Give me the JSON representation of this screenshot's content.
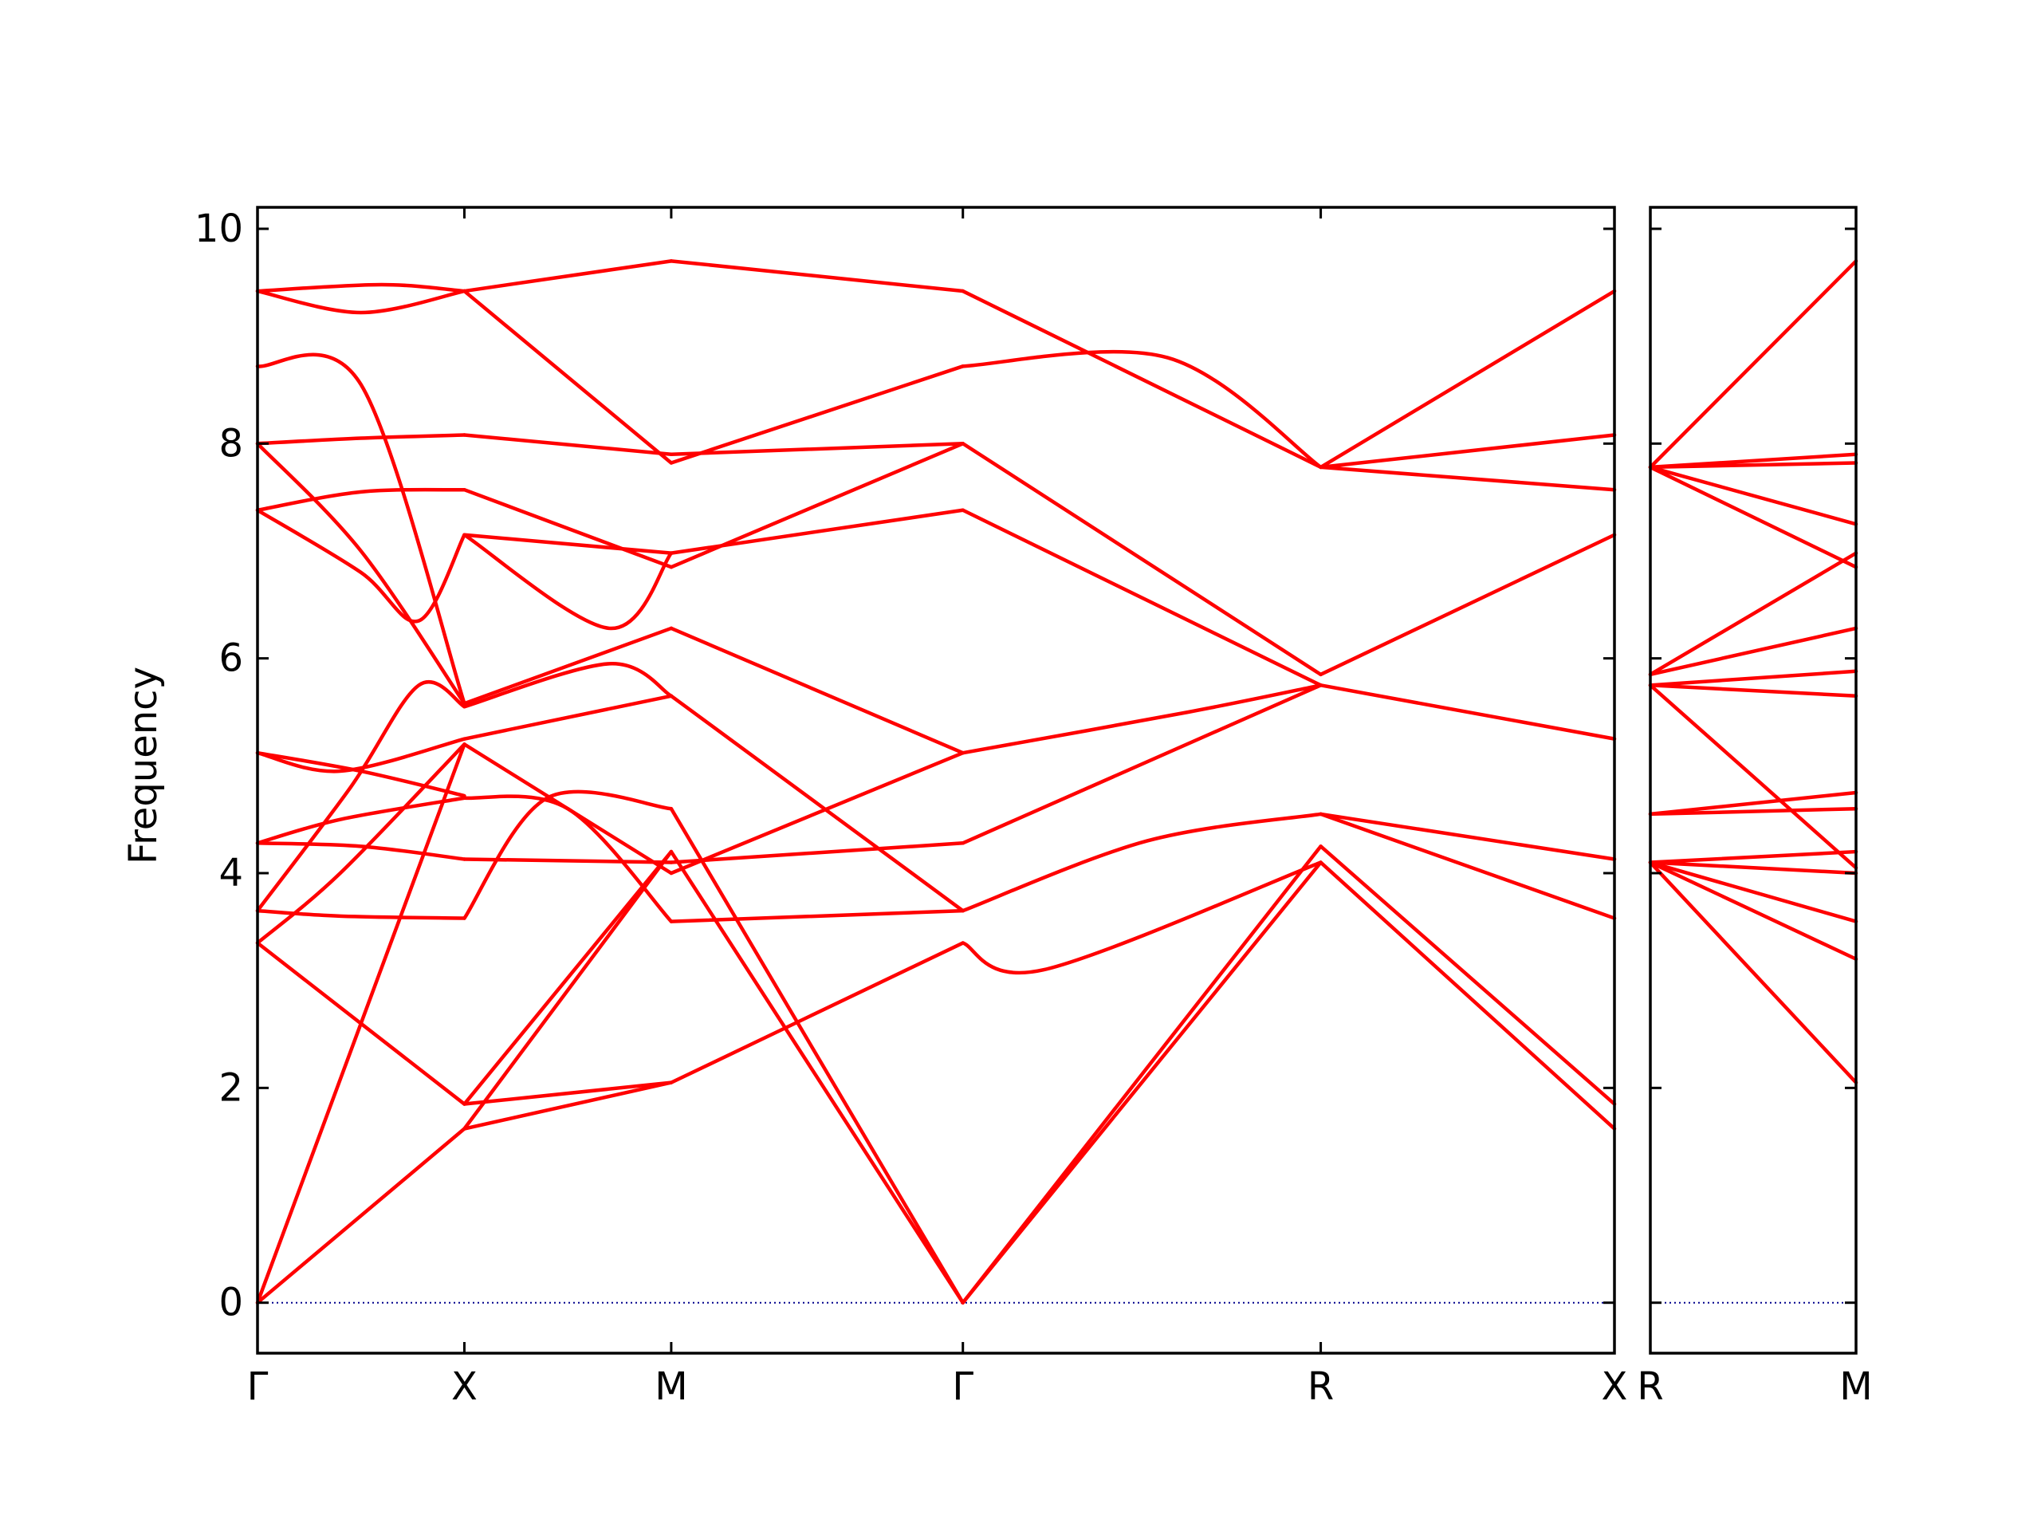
{
  "chart_data": {
    "type": "line",
    "ylabel": "Frequency",
    "ylim": [
      -0.47,
      10.2
    ],
    "yticks": [
      0,
      2,
      4,
      6,
      8,
      10
    ],
    "grid": false,
    "legend": "none",
    "line_color": "#ff0000",
    "zero_line_color": "#00008b",
    "panels": [
      {
        "name": "main",
        "xticks": [
          "Γ",
          "X",
          "M",
          "Γ",
          "R",
          "X"
        ],
        "tick_positions": [
          0,
          1,
          2,
          3.41,
          5.14,
          6.56
        ],
        "bands": [
          {
            "segment": "Γ-X",
            "curves": [
              [
                [
                  0,
                  0
                ],
                [
                  1,
                  1.62
                ]
              ],
              [
                [
                  0,
                  0
                ],
                [
                  1,
                  5.2
                ]
              ],
              [
                [
                  0,
                  3.35
                ],
                [
                  0.5,
                  2.6
                ],
                [
                  1,
                  1.85
                ]
              ],
              [
                [
                  0,
                  3.35
                ],
                [
                  0.4,
                  4.0
                ],
                [
                  1,
                  5.2
                ]
              ],
              [
                [
                  0,
                  3.65
                ],
                [
                  0.4,
                  3.6
                ],
                [
                  1,
                  3.58
                ]
              ],
              [
                [
                  0,
                  3.65
                ],
                [
                  0.45,
                  4.8
                ],
                [
                  0.78,
                  5.75
                ],
                [
                  1,
                  5.55
                ]
              ],
              [
                [
                  0,
                  4.28
                ],
                [
                  0.4,
                  4.5
                ],
                [
                  1,
                  4.7
                ]
              ],
              [
                [
                  0,
                  4.28
                ],
                [
                  0.5,
                  4.25
                ],
                [
                  1,
                  4.13
                ]
              ],
              [
                [
                  0,
                  5.12
                ],
                [
                  0.5,
                  4.95
                ],
                [
                  1,
                  4.72
                ]
              ],
              [
                [
                  0,
                  5.12
                ],
                [
                  0.4,
                  4.95
                ],
                [
                  1,
                  5.25
                ]
              ],
              [
                [
                  0,
                  7.38
                ],
                [
                  0.5,
                  6.8
                ],
                [
                  0.78,
                  6.35
                ],
                [
                  1,
                  7.15
                ]
              ],
              [
                [
                  0,
                  7.38
                ],
                [
                  0.5,
                  7.55
                ],
                [
                  1,
                  7.57
                ]
              ],
              [
                [
                  0,
                  8.0
                ],
                [
                  0.5,
                  7.0
                ],
                [
                  1,
                  5.58
                ]
              ],
              [
                [
                  0,
                  8.0
                ],
                [
                  0.5,
                  8.05
                ],
                [
                  1,
                  8.08
                ]
              ],
              [
                [
                  0,
                  8.72
                ],
                [
                  0.5,
                  8.55
                ],
                [
                  1,
                  5.58
                ]
              ],
              [
                [
                  0,
                  9.42
                ],
                [
                  0.5,
                  9.22
                ],
                [
                  1,
                  9.42
                ]
              ],
              [
                [
                  0,
                  9.42
                ],
                [
                  0.6,
                  9.48
                ],
                [
                  1,
                  9.42
                ]
              ]
            ]
          },
          {
            "segment": "X-M",
            "curves": [
              [
                [
                  1,
                  1.62
                ],
                [
                  2,
                  2.05
                ]
              ],
              [
                [
                  1,
                  1.85
                ],
                [
                  2,
                  2.05
                ]
              ],
              [
                [
                  1,
                  1.62
                ],
                [
                  2,
                  4.2
                ]
              ],
              [
                [
                  1,
                  1.85
                ],
                [
                  2,
                  4.2
                ]
              ],
              [
                [
                  1,
                  3.58
                ],
                [
                  1.4,
                  4.7
                ],
                [
                  2,
                  4.6
                ]
              ],
              [
                [
                  1,
                  4.13
                ],
                [
                  2,
                  4.1
                ]
              ],
              [
                [
                  1,
                  4.7
                ],
                [
                  1.5,
                  4.6
                ],
                [
                  2,
                  3.55
                ]
              ],
              [
                [
                  1,
                  5.2
                ],
                [
                  2,
                  4.0
                ]
              ],
              [
                [
                  1,
                  5.25
                ],
                [
                  2,
                  5.65
                ]
              ],
              [
                [
                  1,
                  5.55
                ],
                [
                  1.7,
                  5.95
                ],
                [
                  2,
                  5.65
                ]
              ],
              [
                [
                  1,
                  7.15
                ],
                [
                  1.7,
                  6.28
                ],
                [
                  2,
                  6.98
                ]
              ],
              [
                [
                  1,
                  7.57
                ],
                [
                  2,
                  6.85
                ]
              ],
              [
                [
                  1,
                  8.08
                ],
                [
                  2,
                  7.9
                ]
              ],
              [
                [
                  1,
                  5.58
                ],
                [
                  2,
                  6.28
                ]
              ],
              [
                [
                  1,
                  7.15
                ],
                [
                  2,
                  6.98
                ]
              ],
              [
                [
                  1,
                  9.42
                ],
                [
                  2,
                  7.82
                ]
              ],
              [
                [
                  1,
                  9.42
                ],
                [
                  2,
                  9.7
                ]
              ]
            ]
          },
          {
            "segment": "M-Γ",
            "curves": [
              [
                [
                  2,
                  2.05
                ],
                [
                  3.41,
                  3.35
                ]
              ],
              [
                [
                  2,
                  4.2
                ],
                [
                  3.41,
                  0
                ]
              ],
              [
                [
                  2,
                  4.6
                ],
                [
                  3.41,
                  0
                ]
              ],
              [
                [
                  2,
                  3.55
                ],
                [
                  3.41,
                  3.65
                ]
              ],
              [
                [
                  2,
                  4.1
                ],
                [
                  3.41,
                  4.28
                ]
              ],
              [
                [
                  2,
                  4.0
                ],
                [
                  3.41,
                  5.12
                ]
              ],
              [
                [
                  2,
                  5.65
                ],
                [
                  3.41,
                  3.65
                ]
              ],
              [
                [
                  2,
                  6.28
                ],
                [
                  3.41,
                  5.12
                ]
              ],
              [
                [
                  2,
                  6.98
                ],
                [
                  3.41,
                  7.38
                ]
              ],
              [
                [
                  2,
                  6.85
                ],
                [
                  3.41,
                  8.0
                ]
              ],
              [
                [
                  2,
                  7.9
                ],
                [
                  3.41,
                  8.0
                ]
              ],
              [
                [
                  2,
                  7.82
                ],
                [
                  3.41,
                  8.72
                ]
              ],
              [
                [
                  2,
                  9.7
                ],
                [
                  3.41,
                  9.42
                ]
              ]
            ]
          },
          {
            "segment": "Γ-R",
            "curves": [
              [
                [
                  3.41,
                  0
                ],
                [
                  5.14,
                  4.1
                ]
              ],
              [
                [
                  3.41,
                  0
                ],
                [
                  5.14,
                  4.25
                ]
              ],
              [
                [
                  3.41,
                  3.35
                ],
                [
                  3.8,
                  3.1
                ],
                [
                  5.14,
                  4.1
                ]
              ],
              [
                [
                  3.41,
                  3.65
                ],
                [
                  4.3,
                  4.3
                ],
                [
                  5.14,
                  4.55
                ]
              ],
              [
                [
                  3.41,
                  4.28
                ],
                [
                  5.14,
                  5.75
                ]
              ],
              [
                [
                  3.41,
                  5.12
                ],
                [
                  4.5,
                  5.5
                ],
                [
                  5.14,
                  5.75
                ]
              ],
              [
                [
                  3.41,
                  7.38
                ],
                [
                  5.14,
                  5.75
                ]
              ],
              [
                [
                  3.41,
                  8.0
                ],
                [
                  5.14,
                  5.85
                ]
              ],
              [
                [
                  3.41,
                  8.72
                ],
                [
                  4.4,
                  8.8
                ],
                [
                  5.14,
                  7.78
                ]
              ],
              [
                [
                  3.41,
                  9.42
                ],
                [
                  5.14,
                  7.78
                ]
              ]
            ]
          },
          {
            "segment": "R-X",
            "curves": [
              [
                [
                  5.14,
                  4.1
                ],
                [
                  6.56,
                  1.62
                ]
              ],
              [
                [
                  5.14,
                  4.25
                ],
                [
                  6.56,
                  1.85
                ]
              ],
              [
                [
                  5.14,
                  4.55
                ],
                [
                  6.56,
                  3.58
                ]
              ],
              [
                [
                  5.14,
                  4.55
                ],
                [
                  6.56,
                  4.13
                ]
              ],
              [
                [
                  5.14,
                  5.75
                ],
                [
                  6.56,
                  5.25
                ]
              ],
              [
                [
                  5.14,
                  5.85
                ],
                [
                  6.56,
                  7.15
                ]
              ],
              [
                [
                  5.14,
                  7.78
                ],
                [
                  6.56,
                  7.57
                ]
              ],
              [
                [
                  5.14,
                  7.78
                ],
                [
                  6.56,
                  8.08
                ]
              ],
              [
                [
                  5.14,
                  7.78
                ],
                [
                  6.56,
                  9.42
                ]
              ]
            ]
          }
        ]
      },
      {
        "name": "R-M",
        "xticks": [
          "R",
          "M"
        ],
        "tick_positions": [
          0,
          1
        ],
        "curves": [
          [
            [
              0,
              4.1
            ],
            [
              1,
              2.05
            ]
          ],
          [
            [
              0,
              4.1
            ],
            [
              1,
              3.2
            ]
          ],
          [
            [
              0,
              4.1
            ],
            [
              1,
              3.55
            ]
          ],
          [
            [
              0,
              4.1
            ],
            [
              1,
              4.0
            ]
          ],
          [
            [
              0,
              4.1
            ],
            [
              1,
              4.2
            ]
          ],
          [
            [
              0,
              4.55
            ],
            [
              1,
              4.6
            ]
          ],
          [
            [
              0,
              4.55
            ],
            [
              1,
              4.75
            ]
          ],
          [
            [
              0,
              5.75
            ],
            [
              1,
              4.05
            ]
          ],
          [
            [
              0,
              5.75
            ],
            [
              1,
              5.65
            ]
          ],
          [
            [
              0,
              5.75
            ],
            [
              1,
              5.88
            ]
          ],
          [
            [
              0,
              5.85
            ],
            [
              1,
              6.28
            ]
          ],
          [
            [
              0,
              5.85
            ],
            [
              1,
              6.98
            ]
          ],
          [
            [
              0,
              7.78
            ],
            [
              1,
              6.85
            ]
          ],
          [
            [
              0,
              7.78
            ],
            [
              1,
              7.25
            ]
          ],
          [
            [
              0,
              7.78
            ],
            [
              1,
              7.82
            ]
          ],
          [
            [
              0,
              7.78
            ],
            [
              1,
              7.9
            ]
          ],
          [
            [
              0,
              7.78
            ],
            [
              1,
              9.7
            ]
          ]
        ]
      }
    ]
  }
}
